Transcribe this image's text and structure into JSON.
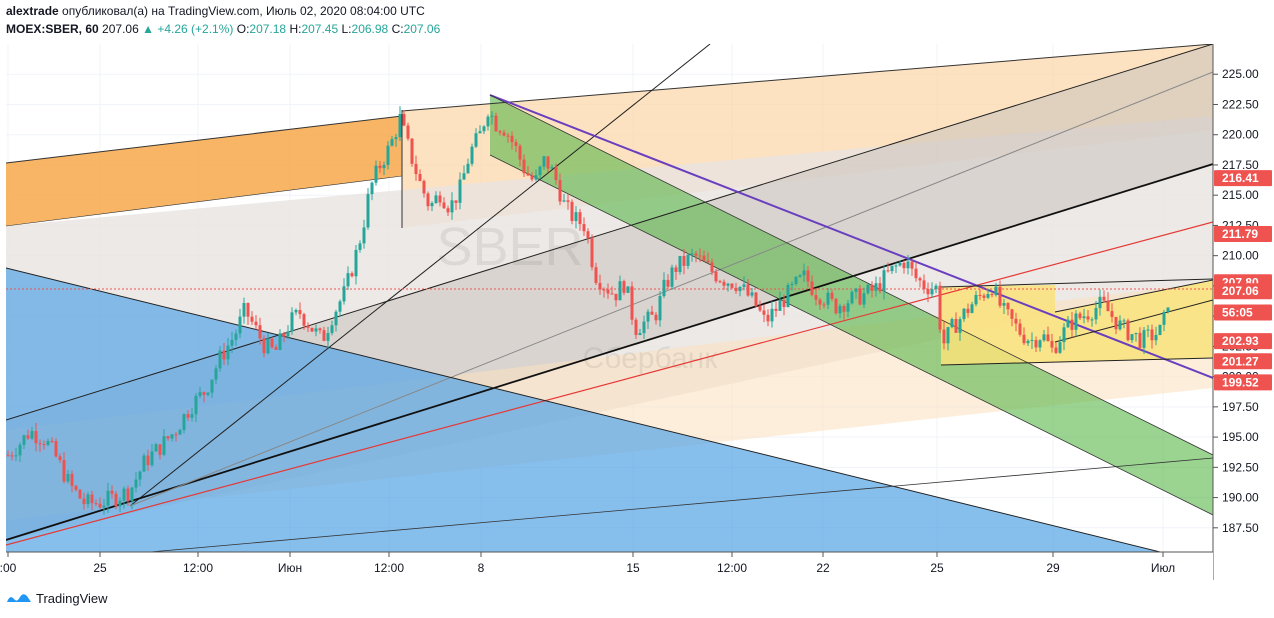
{
  "header": {
    "author": "alextrade",
    "published_text": "опубликовал(а) на TradingView.com, Июль 02, 2020 08:04:00 UTC",
    "symbol": "MOEX:SBER, 60",
    "last": "207.06",
    "change_arrow": "▲",
    "change": "+4.26 (+2.1%)",
    "o_label": "O:",
    "o": "207.18",
    "h_label": "H:",
    "h": "207.45",
    "l_label": "L:",
    "l": "206.98",
    "c_label": "C:",
    "c": "207.06"
  },
  "watermark": {
    "symbol": "SBER",
    "name": "Сбербанк"
  },
  "footer": {
    "brand": "TradingView",
    "icon": "tradingview-logo-icon"
  },
  "chart_data": {
    "type": "candlestick",
    "symbol": "MOEX:SBER",
    "interval": "60",
    "ylim": [
      185.5,
      227.5
    ],
    "y_ticks": [
      187.5,
      190,
      192.5,
      195,
      197.5,
      200,
      202.5,
      205,
      207.5,
      210,
      212.5,
      215,
      217.5,
      220,
      222.5,
      225
    ],
    "x_ticks": [
      {
        "label": ":00",
        "x": 8
      },
      {
        "label": "25",
        "x": 100
      },
      {
        "label": "12:00",
        "x": 198
      },
      {
        "label": "Июн",
        "x": 290
      },
      {
        "label": "12:00",
        "x": 389
      },
      {
        "label": "8",
        "x": 481
      },
      {
        "label": "15",
        "x": 633
      },
      {
        "label": "12:00",
        "x": 732
      },
      {
        "label": "22",
        "x": 823
      },
      {
        "label": "25",
        "x": 937
      },
      {
        "label": "29",
        "x": 1053
      },
      {
        "label": "Июл",
        "x": 1163
      }
    ],
    "price_labels": [
      {
        "label": "216.41",
        "value": 216.41,
        "color": "#ef5350"
      },
      {
        "label": "211.79",
        "value": 211.79,
        "color": "#ef5350"
      },
      {
        "label": "207.80",
        "value": 207.8,
        "color": "#ef5350"
      },
      {
        "label": "207.06",
        "value": 207.06,
        "color": "#ef5350"
      },
      {
        "label": "56:05",
        "value": 205.3,
        "color": "#ef5350"
      },
      {
        "label": "202.93",
        "value": 202.93,
        "color": "#ef5350"
      },
      {
        "label": "201.27",
        "value": 201.27,
        "color": "#ef5350"
      },
      {
        "label": "199.52",
        "value": 199.52,
        "color": "#ef5350"
      }
    ],
    "colors": {
      "up": "#26a69a",
      "down": "#ef5350"
    },
    "price_path": [
      [
        8,
        193.5
      ],
      [
        20,
        194.5
      ],
      [
        30,
        195.5
      ],
      [
        45,
        194.8
      ],
      [
        55,
        193.5
      ],
      [
        70,
        191.0
      ],
      [
        85,
        189.5
      ],
      [
        100,
        189.6
      ],
      [
        115,
        190.0
      ],
      [
        130,
        190.6
      ],
      [
        145,
        193.0
      ],
      [
        160,
        194.2
      ],
      [
        175,
        195.5
      ],
      [
        190,
        197.5
      ],
      [
        205,
        198.8
      ],
      [
        220,
        201.5
      ],
      [
        235,
        203.5
      ],
      [
        245,
        205.5
      ],
      [
        255,
        204.0
      ],
      [
        265,
        202.5
      ],
      [
        275,
        202.0
      ],
      [
        290,
        204.5
      ],
      [
        300,
        205.3
      ],
      [
        312,
        204.0
      ],
      [
        322,
        203.0
      ],
      [
        332,
        205.0
      ],
      [
        345,
        207.0
      ],
      [
        355,
        209.8
      ],
      [
        362,
        212.0
      ],
      [
        370,
        215.5
      ],
      [
        380,
        217.5
      ],
      [
        390,
        219.0
      ],
      [
        400,
        221.3
      ],
      [
        410,
        218.5
      ],
      [
        420,
        216.0
      ],
      [
        430,
        214.0
      ],
      [
        440,
        215.2
      ],
      [
        450,
        214.0
      ],
      [
        460,
        215.5
      ],
      [
        470,
        218.5
      ],
      [
        480,
        220.0
      ],
      [
        488,
        222.2
      ],
      [
        495,
        221.0
      ],
      [
        505,
        220.5
      ],
      [
        515,
        219.0
      ],
      [
        525,
        217.0
      ],
      [
        535,
        216.0
      ],
      [
        545,
        218.0
      ],
      [
        555,
        216.5
      ],
      [
        565,
        214.0
      ],
      [
        575,
        213.0
      ],
      [
        585,
        212.5
      ],
      [
        595,
        208.5
      ],
      [
        605,
        207.5
      ],
      [
        615,
        206.8
      ],
      [
        625,
        207.8
      ],
      [
        635,
        204.0
      ],
      [
        645,
        204.5
      ],
      [
        655,
        205.0
      ],
      [
        665,
        207.5
      ],
      [
        675,
        209.0
      ],
      [
        685,
        209.5
      ],
      [
        695,
        210.0
      ],
      [
        705,
        209.2
      ],
      [
        715,
        208.5
      ],
      [
        725,
        208.0
      ],
      [
        735,
        207.8
      ],
      [
        745,
        207.0
      ],
      [
        755,
        206.0
      ],
      [
        765,
        204.5
      ],
      [
        775,
        205.5
      ],
      [
        785,
        206.5
      ],
      [
        795,
        207.5
      ],
      [
        805,
        208.3
      ],
      [
        815,
        207.0
      ],
      [
        825,
        206.5
      ],
      [
        835,
        205.8
      ],
      [
        845,
        206.2
      ],
      [
        855,
        206.5
      ],
      [
        865,
        206.8
      ],
      [
        875,
        207.2
      ],
      [
        885,
        208.2
      ],
      [
        895,
        209.0
      ],
      [
        905,
        209.6
      ],
      [
        915,
        208.2
      ],
      [
        925,
        207.5
      ],
      [
        937,
        207.3
      ],
      [
        942,
        202.5
      ],
      [
        952,
        204.0
      ],
      [
        962,
        205.0
      ],
      [
        972,
        206.0
      ],
      [
        982,
        206.8
      ],
      [
        992,
        207.5
      ],
      [
        1002,
        205.5
      ],
      [
        1012,
        204.5
      ],
      [
        1022,
        203.5
      ],
      [
        1032,
        203.0
      ],
      [
        1042,
        203.5
      ],
      [
        1052,
        202.2
      ],
      [
        1062,
        203.5
      ],
      [
        1072,
        204.5
      ],
      [
        1082,
        205.0
      ],
      [
        1092,
        205.5
      ],
      [
        1102,
        206.0
      ],
      [
        1112,
        205.0
      ],
      [
        1122,
        204.0
      ],
      [
        1132,
        203.5
      ],
      [
        1142,
        203.0
      ],
      [
        1152,
        203.4
      ],
      [
        1162,
        203.8
      ],
      [
        1170,
        207.2
      ]
    ],
    "channels": [
      {
        "name": "",
        "type": "fill",
        "color": "#f7a84a",
        "opacity": 0.85,
        "points": [
          [
            6,
            163
          ],
          [
            402,
            116
          ],
          [
            402,
            176
          ],
          [
            6,
            226
          ]
        ]
      },
      {
        "name": "",
        "type": "fill",
        "color": "#fcd6a6",
        "opacity": 0.7,
        "points": [
          [
            402,
            111
          ],
          [
            1213,
            44
          ],
          [
            1213,
            130
          ],
          [
            402,
            228
          ]
        ]
      },
      {
        "name": "",
        "type": "fill",
        "color": "#e8e4e0",
        "opacity": 0.8,
        "points": [
          [
            6,
            226
          ],
          [
            1213,
            116
          ],
          [
            1213,
            280
          ],
          [
            6,
            540
          ]
        ]
      },
      {
        "name": "",
        "type": "fill",
        "color": "#c9c2bd",
        "opacity": 0.55,
        "points": [
          [
            6,
            420
          ],
          [
            1213,
            44
          ],
          [
            1213,
            164
          ],
          [
            6,
            540
          ]
        ]
      },
      {
        "name": "",
        "type": "fill",
        "color": "#fce0bd",
        "opacity": 0.55,
        "points": [
          [
            6,
            430
          ],
          [
            1213,
            282
          ],
          [
            1213,
            388
          ],
          [
            6,
            520
          ]
        ]
      },
      {
        "name": "",
        "type": "fill",
        "color": "#5ea8e6",
        "opacity": 0.75,
        "points": [
          [
            6,
            268
          ],
          [
            1213,
            565
          ],
          [
            1213,
            580
          ],
          [
            6,
            580
          ],
          [
            6,
            268
          ]
        ]
      },
      {
        "name": "",
        "type": "fill",
        "color": "#58b548",
        "opacity": 0.6,
        "points": [
          [
            490,
            95
          ],
          [
            1213,
            455
          ],
          [
            1213,
            515
          ],
          [
            490,
            155
          ]
        ]
      },
      {
        "name": "",
        "type": "fill",
        "color": "#f9e27a",
        "opacity": 0.85,
        "points": [
          [
            941,
            287
          ],
          [
            1055,
            285
          ],
          [
            1055,
            362
          ],
          [
            941,
            365
          ]
        ]
      },
      {
        "name": "",
        "type": "fill",
        "color": "#f9e27a",
        "opacity": 0.85,
        "points": [
          [
            1055,
            312
          ],
          [
            1213,
            280
          ],
          [
            1213,
            358
          ],
          [
            1055,
            362
          ]
        ]
      }
    ]
  }
}
